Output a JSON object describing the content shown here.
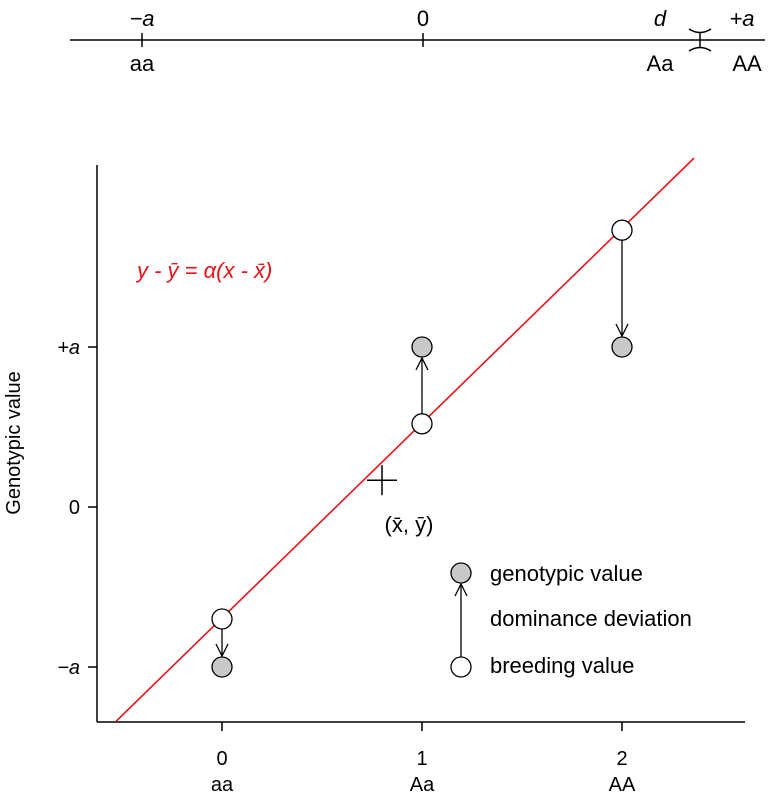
{
  "number_line": {
    "tick_top_labels": [
      "−a",
      "0",
      "d",
      "+a"
    ],
    "genotype_labels": [
      "aa",
      "Aa",
      "AA"
    ],
    "positions": [
      -1,
      0,
      0.75,
      1
    ]
  },
  "chart_data": {
    "type": "scatter",
    "ylabel": "Genotypic value",
    "xlim": [
      -0.55,
      2.6
    ],
    "ylim": [
      -1.5,
      1.2
    ],
    "x_ticks": [
      0,
      1,
      2
    ],
    "x_tick_labels": [
      "0",
      "1",
      "2"
    ],
    "x_genotype_labels": [
      "aa",
      "Aa",
      "AA"
    ],
    "y_ticks": [
      -1,
      0,
      1
    ],
    "y_tick_labels": [
      "−a",
      "0",
      "+a"
    ],
    "genotypic_values": [
      {
        "x": 0,
        "y": -1
      },
      {
        "x": 1,
        "y": 1
      },
      {
        "x": 2,
        "y": 1
      }
    ],
    "breeding_values": [
      {
        "x": 0,
        "y": -0.7
      },
      {
        "x": 1,
        "y": 0.52
      },
      {
        "x": 2,
        "y": 1.73
      }
    ],
    "mean_point": {
      "x": 0.8,
      "y": 0.28,
      "label": "(x̄, ȳ)"
    },
    "regression_line": {
      "slope": 1.218,
      "intercept": -0.694,
      "color": "#e8141b"
    },
    "regression_equation": "y - ȳ = α(x - x̄)",
    "legend": {
      "placement": "bottom-right",
      "genotypic_value": "genotypic value",
      "dominance_deviation": "dominance deviation",
      "breeding_value": "breeding value"
    },
    "colors": {
      "line": "#e8141b",
      "genotypic_fill": "#c8c8c8",
      "breeding_fill": "#ffffff"
    }
  }
}
